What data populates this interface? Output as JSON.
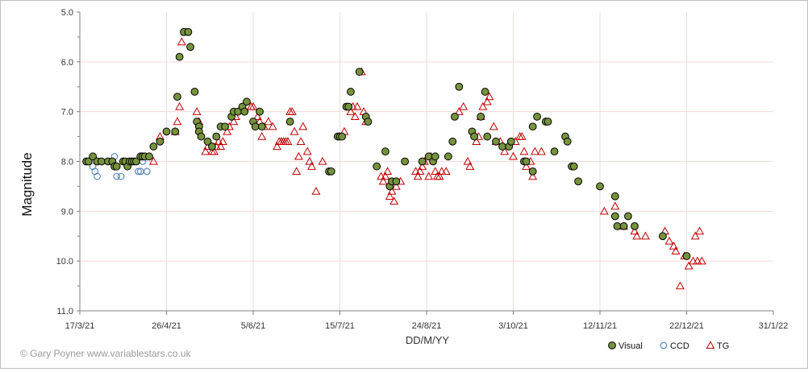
{
  "chart_data": {
    "type": "scatter",
    "title": "",
    "xlabel": "DD/M/YY",
    "ylabel": "Magnitude",
    "x_axis": {
      "min": "2021-03-17",
      "max": "2022-01-31",
      "ticks": [
        "2021-03-17",
        "2021-04-26",
        "2021-06-05",
        "2021-07-15",
        "2021-08-24",
        "2021-10-03",
        "2021-11-12",
        "2021-12-22",
        "2022-01-31"
      ],
      "tick_labels": [
        "17/3/21",
        "26/4/21",
        "5/6/21",
        "15/7/21",
        "24/8/21",
        "3/10/21",
        "12/11/21",
        "22/12/21",
        "31/1/22"
      ]
    },
    "y_axis": {
      "min": 5.0,
      "max": 11.0,
      "inverted": true,
      "ticks": [
        5.0,
        6.0,
        7.0,
        8.0,
        9.0,
        10.0,
        11.0
      ],
      "tick_labels": [
        "5.0",
        "6.0",
        "7.0",
        "8.0",
        "9.0",
        "10.0",
        "11.0"
      ]
    },
    "grid": true,
    "legend_position": "bottom-right",
    "series": [
      {
        "name": "Visual",
        "marker": "circle-filled",
        "color": "#76933c",
        "edge": "#000000",
        "points": [
          [
            "2021-03-20",
            8.0
          ],
          [
            "2021-03-21",
            8.0
          ],
          [
            "2021-03-23",
            7.9
          ],
          [
            "2021-03-25",
            8.0
          ],
          [
            "2021-03-27",
            8.0
          ],
          [
            "2021-03-30",
            8.0
          ],
          [
            "2021-04-01",
            8.0
          ],
          [
            "2021-04-02",
            8.1
          ],
          [
            "2021-04-03",
            8.1
          ],
          [
            "2021-04-06",
            8.0
          ],
          [
            "2021-04-07",
            8.0
          ],
          [
            "2021-04-08",
            8.1
          ],
          [
            "2021-04-09",
            8.0
          ],
          [
            "2021-04-10",
            8.0
          ],
          [
            "2021-04-11",
            8.0
          ],
          [
            "2021-04-12",
            8.0
          ],
          [
            "2021-04-14",
            7.9
          ],
          [
            "2021-04-15",
            7.9
          ],
          [
            "2021-04-16",
            7.9
          ],
          [
            "2021-04-18",
            7.9
          ],
          [
            "2021-04-20",
            7.7
          ],
          [
            "2021-04-23",
            7.6
          ],
          [
            "2021-04-26",
            7.4
          ],
          [
            "2021-04-30",
            7.4
          ],
          [
            "2021-05-01",
            6.7
          ],
          [
            "2021-05-02",
            5.9
          ],
          [
            "2021-05-04",
            5.4
          ],
          [
            "2021-05-06",
            5.4
          ],
          [
            "2021-05-07",
            5.7
          ],
          [
            "2021-05-09",
            6.6
          ],
          [
            "2021-05-10",
            7.2
          ],
          [
            "2021-05-11",
            7.3
          ],
          [
            "2021-05-11",
            7.4
          ],
          [
            "2021-05-12",
            7.5
          ],
          [
            "2021-05-15",
            7.6
          ],
          [
            "2021-05-17",
            7.7
          ],
          [
            "2021-05-19",
            7.5
          ],
          [
            "2021-05-21",
            7.3
          ],
          [
            "2021-05-23",
            7.3
          ],
          [
            "2021-05-26",
            7.1
          ],
          [
            "2021-05-27",
            7.0
          ],
          [
            "2021-05-29",
            7.0
          ],
          [
            "2021-05-31",
            6.9
          ],
          [
            "2021-06-01",
            7.0
          ],
          [
            "2021-06-02",
            6.8
          ],
          [
            "2021-06-05",
            7.2
          ],
          [
            "2021-06-06",
            7.3
          ],
          [
            "2021-06-08",
            7.0
          ],
          [
            "2021-06-09",
            7.3
          ],
          [
            "2021-06-22",
            7.2
          ],
          [
            "2021-07-10",
            8.2
          ],
          [
            "2021-07-11",
            8.2
          ],
          [
            "2021-07-14",
            7.5
          ],
          [
            "2021-07-15",
            7.5
          ],
          [
            "2021-07-16",
            7.5
          ],
          [
            "2021-07-18",
            6.9
          ],
          [
            "2021-07-19",
            6.9
          ],
          [
            "2021-07-20",
            6.6
          ],
          [
            "2021-07-24",
            6.2
          ],
          [
            "2021-07-27",
            7.1
          ],
          [
            "2021-07-28",
            7.2
          ],
          [
            "2021-08-01",
            8.1
          ],
          [
            "2021-08-05",
            7.8
          ],
          [
            "2021-08-07",
            8.5
          ],
          [
            "2021-08-08",
            8.4
          ],
          [
            "2021-08-10",
            8.4
          ],
          [
            "2021-08-14",
            8.0
          ],
          [
            "2021-08-22",
            8.0
          ],
          [
            "2021-08-25",
            7.9
          ],
          [
            "2021-08-27",
            8.0
          ],
          [
            "2021-08-28",
            7.9
          ],
          [
            "2021-09-03",
            7.9
          ],
          [
            "2021-09-05",
            7.6
          ],
          [
            "2021-09-06",
            7.1
          ],
          [
            "2021-09-08",
            6.5
          ],
          [
            "2021-09-14",
            7.4
          ],
          [
            "2021-09-15",
            7.5
          ],
          [
            "2021-09-18",
            7.1
          ],
          [
            "2021-09-20",
            6.6
          ],
          [
            "2021-09-21",
            7.5
          ],
          [
            "2021-09-25",
            7.6
          ],
          [
            "2021-09-28",
            7.7
          ],
          [
            "2021-10-01",
            7.7
          ],
          [
            "2021-10-02",
            7.6
          ],
          [
            "2021-10-08",
            8.0
          ],
          [
            "2021-10-09",
            8.0
          ],
          [
            "2021-10-12",
            8.2
          ],
          [
            "2021-10-12",
            7.3
          ],
          [
            "2021-10-14",
            7.1
          ],
          [
            "2021-10-18",
            7.2
          ],
          [
            "2021-10-19",
            7.2
          ],
          [
            "2021-10-22",
            7.8
          ],
          [
            "2021-10-27",
            7.5
          ],
          [
            "2021-10-28",
            7.6
          ],
          [
            "2021-10-30",
            8.1
          ],
          [
            "2021-10-31",
            8.1
          ],
          [
            "2021-11-02",
            8.4
          ],
          [
            "2021-11-12",
            8.5
          ],
          [
            "2021-11-19",
            8.7
          ],
          [
            "2021-11-19",
            9.1
          ],
          [
            "2021-11-20",
            9.3
          ],
          [
            "2021-11-23",
            9.3
          ],
          [
            "2021-11-25",
            9.1
          ],
          [
            "2021-11-28",
            9.3
          ],
          [
            "2021-12-11",
            9.5
          ],
          [
            "2021-12-22",
            9.9
          ]
        ]
      },
      {
        "name": "CCD",
        "marker": "circle-open",
        "color": "#4f81bd",
        "points": [
          [
            "2021-03-23",
            8.1
          ],
          [
            "2021-03-24",
            8.2
          ],
          [
            "2021-03-25",
            8.3
          ],
          [
            "2021-03-30",
            8.0
          ],
          [
            "2021-04-02",
            7.9
          ],
          [
            "2021-04-03",
            8.3
          ],
          [
            "2021-04-05",
            8.3
          ],
          [
            "2021-04-13",
            8.2
          ],
          [
            "2021-04-14",
            8.2
          ],
          [
            "2021-04-15",
            8.0
          ],
          [
            "2021-04-17",
            8.2
          ]
        ]
      },
      {
        "name": "TG",
        "marker": "triangle-open",
        "color": "#c00000",
        "points": [
          [
            "2021-04-20",
            8.0
          ],
          [
            "2021-04-23",
            7.5
          ],
          [
            "2021-04-30",
            7.4
          ],
          [
            "2021-05-01",
            7.2
          ],
          [
            "2021-05-02",
            6.9
          ],
          [
            "2021-05-03",
            5.6
          ],
          [
            "2021-05-05",
            5.4
          ],
          [
            "2021-05-10",
            7.0
          ],
          [
            "2021-05-11",
            7.2
          ],
          [
            "2021-05-14",
            7.8
          ],
          [
            "2021-05-15",
            7.7
          ],
          [
            "2021-05-17",
            7.8
          ],
          [
            "2021-05-18",
            7.8
          ],
          [
            "2021-05-19",
            7.7
          ],
          [
            "2021-05-20",
            7.6
          ],
          [
            "2021-05-21",
            7.7
          ],
          [
            "2021-05-22",
            7.6
          ],
          [
            "2021-05-24",
            7.4
          ],
          [
            "2021-05-25",
            7.3
          ],
          [
            "2021-05-27",
            7.2
          ],
          [
            "2021-05-28",
            7.1
          ],
          [
            "2021-06-04",
            6.9
          ],
          [
            "2021-06-05",
            6.9
          ],
          [
            "2021-06-07",
            7.1
          ],
          [
            "2021-06-08",
            7.2
          ],
          [
            "2021-06-09",
            7.5
          ],
          [
            "2021-06-10",
            7.3
          ],
          [
            "2021-06-12",
            7.2
          ],
          [
            "2021-06-14",
            7.3
          ],
          [
            "2021-06-16",
            7.7
          ],
          [
            "2021-06-17",
            7.6
          ],
          [
            "2021-06-18",
            7.6
          ],
          [
            "2021-06-19",
            7.6
          ],
          [
            "2021-06-20",
            7.6
          ],
          [
            "2021-06-21",
            7.6
          ],
          [
            "2021-06-22",
            7.0
          ],
          [
            "2021-06-23",
            7.0
          ],
          [
            "2021-06-24",
            7.4
          ],
          [
            "2021-06-25",
            8.2
          ],
          [
            "2021-06-26",
            7.9
          ],
          [
            "2021-06-27",
            7.6
          ],
          [
            "2021-06-28",
            7.3
          ],
          [
            "2021-06-30",
            7.8
          ],
          [
            "2021-07-01",
            8.0
          ],
          [
            "2021-07-02",
            8.1
          ],
          [
            "2021-07-04",
            8.6
          ],
          [
            "2021-07-07",
            8.0
          ],
          [
            "2021-07-17",
            7.4
          ],
          [
            "2021-07-20",
            7.0
          ],
          [
            "2021-07-21",
            6.9
          ],
          [
            "2021-07-22",
            7.1
          ],
          [
            "2021-07-23",
            6.9
          ],
          [
            "2021-07-25",
            6.2
          ],
          [
            "2021-07-26",
            7.0
          ],
          [
            "2021-07-27",
            7.2
          ],
          [
            "2021-08-03",
            8.3
          ],
          [
            "2021-08-04",
            8.4
          ],
          [
            "2021-08-05",
            8.3
          ],
          [
            "2021-08-06",
            8.2
          ],
          [
            "2021-08-07",
            8.7
          ],
          [
            "2021-08-08",
            8.6
          ],
          [
            "2021-08-09",
            8.8
          ],
          [
            "2021-08-10",
            8.5
          ],
          [
            "2021-08-12",
            8.4
          ],
          [
            "2021-08-19",
            8.2
          ],
          [
            "2021-08-20",
            8.3
          ],
          [
            "2021-08-21",
            8.2
          ],
          [
            "2021-08-22",
            8.1
          ],
          [
            "2021-08-23",
            8.0
          ],
          [
            "2021-08-25",
            8.3
          ],
          [
            "2021-08-26",
            7.9
          ],
          [
            "2021-08-28",
            8.2
          ],
          [
            "2021-08-29",
            8.3
          ],
          [
            "2021-08-30",
            8.3
          ],
          [
            "2021-08-31",
            8.2
          ],
          [
            "2021-09-02",
            8.2
          ],
          [
            "2021-09-08",
            7.0
          ],
          [
            "2021-09-10",
            6.9
          ],
          [
            "2021-09-12",
            8.0
          ],
          [
            "2021-09-13",
            8.1
          ],
          [
            "2021-09-16",
            7.6
          ],
          [
            "2021-09-17",
            7.5
          ],
          [
            "2021-09-18",
            7.1
          ],
          [
            "2021-09-19",
            6.9
          ],
          [
            "2021-09-21",
            6.8
          ],
          [
            "2021-09-22",
            6.7
          ],
          [
            "2021-09-24",
            7.3
          ],
          [
            "2021-09-25",
            7.6
          ],
          [
            "2021-09-27",
            7.6
          ],
          [
            "2021-09-29",
            7.8
          ],
          [
            "2021-10-03",
            7.9
          ],
          [
            "2021-10-04",
            7.6
          ],
          [
            "2021-10-06",
            7.5
          ],
          [
            "2021-10-07",
            7.5
          ],
          [
            "2021-10-08",
            7.8
          ],
          [
            "2021-10-09",
            8.1
          ],
          [
            "2021-10-11",
            8.0
          ],
          [
            "2021-10-12",
            8.3
          ],
          [
            "2021-10-13",
            7.8
          ],
          [
            "2021-10-16",
            7.8
          ],
          [
            "2021-11-14",
            9.0
          ],
          [
            "2021-11-19",
            8.9
          ],
          [
            "2021-11-23",
            9.3
          ],
          [
            "2021-11-28",
            9.4
          ],
          [
            "2021-11-29",
            9.5
          ],
          [
            "2021-12-03",
            9.5
          ],
          [
            "2021-12-12",
            9.4
          ],
          [
            "2021-12-14",
            9.6
          ],
          [
            "2021-12-16",
            9.7
          ],
          [
            "2021-12-17",
            9.8
          ],
          [
            "2021-12-19",
            10.5
          ],
          [
            "2021-12-21",
            9.9
          ],
          [
            "2021-12-23",
            10.1
          ],
          [
            "2021-12-25",
            10.0
          ],
          [
            "2021-12-26",
            9.5
          ],
          [
            "2021-12-27",
            10.0
          ],
          [
            "2021-12-28",
            9.4
          ],
          [
            "2021-12-29",
            10.0
          ]
        ]
      }
    ]
  },
  "copyright": "© Gary Poyner www.variablestars.co.uk"
}
